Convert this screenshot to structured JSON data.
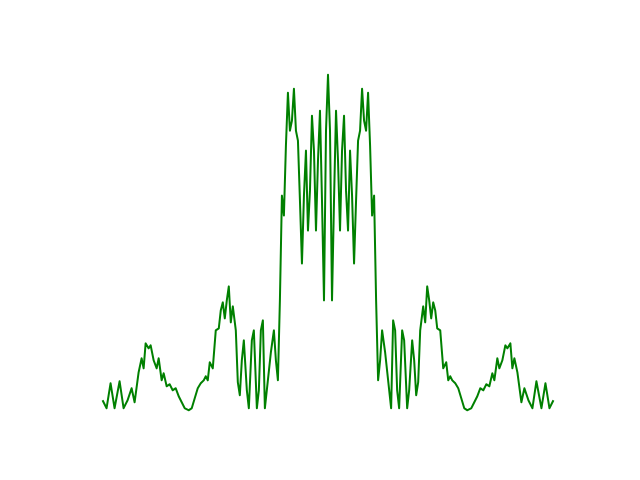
{
  "chart_data": {
    "type": "line",
    "color": "#008000",
    "x": [
      0,
      4,
      8,
      12,
      17,
      21,
      25,
      29,
      32,
      36,
      39,
      41,
      43,
      46,
      48,
      51,
      54,
      56,
      59,
      61,
      64,
      67,
      70,
      73,
      76,
      79,
      82,
      86,
      89,
      92,
      95,
      98,
      101,
      103,
      105,
      107,
      110,
      113,
      116,
      118,
      120,
      122,
      124,
      126,
      128,
      130,
      133,
      135,
      137,
      139,
      141,
      144,
      146,
      149,
      151,
      154,
      156,
      158,
      160,
      162,
      165,
      168,
      171,
      173,
      175,
      177,
      179,
      181,
      183,
      185,
      187,
      189,
      191,
      193,
      195,
      197,
      199,
      201,
      203,
      205,
      207,
      209,
      211,
      213,
      215,
      217,
      219,
      221,
      223,
      225,
      227,
      229,
      231,
      233,
      235,
      237,
      239,
      241,
      243,
      245,
      247,
      249,
      251,
      253,
      255,
      257,
      259,
      261,
      263,
      265,
      267,
      269,
      271,
      273,
      275,
      277,
      279,
      282,
      285,
      288,
      290,
      292,
      294,
      296,
      299,
      301,
      304,
      306,
      309,
      311,
      313,
      315,
      317,
      320,
      322,
      324,
      326,
      328,
      330,
      332,
      334,
      337,
      340,
      343,
      345,
      347,
      349,
      352,
      355,
      358,
      361,
      364,
      368,
      371,
      374,
      377,
      380,
      383,
      386,
      389,
      391,
      394,
      396,
      399,
      402,
      404,
      407,
      409,
      411,
      414,
      418,
      421,
      425,
      429,
      433,
      438,
      442,
      446,
      450
    ],
    "y": [
      10,
      2,
      27,
      2,
      29,
      2,
      10,
      22,
      8,
      38,
      52,
      42,
      67,
      62,
      65,
      50,
      42,
      52,
      30,
      37,
      24,
      26,
      20,
      22,
      14,
      8,
      2,
      0,
      2,
      12,
      22,
      27,
      30,
      34,
      30,
      48,
      42,
      80,
      82,
      100,
      108,
      92,
      110,
      124,
      88,
      104,
      80,
      28,
      15,
      50,
      70,
      20,
      2,
      70,
      80,
      2,
      20,
      80,
      90,
      2,
      30,
      58,
      80,
      50,
      30,
      110,
      215,
      195,
      265,
      318,
      280,
      290,
      322,
      280,
      270,
      210,
      147,
      215,
      260,
      180,
      220,
      295,
      260,
      180,
      250,
      300,
      210,
      110,
      280,
      336,
      280,
      110,
      210,
      300,
      250,
      180,
      260,
      295,
      220,
      180,
      260,
      215,
      147,
      210,
      270,
      280,
      322,
      290,
      280,
      318,
      265,
      195,
      215,
      110,
      30,
      50,
      80,
      58,
      30,
      2,
      90,
      80,
      20,
      2,
      80,
      70,
      2,
      20,
      70,
      50,
      15,
      28,
      80,
      104,
      88,
      124,
      110,
      92,
      108,
      100,
      82,
      80,
      42,
      48,
      30,
      34,
      30,
      27,
      22,
      12,
      2,
      0,
      2,
      8,
      14,
      22,
      20,
      26,
      24,
      37,
      30,
      52,
      42,
      50,
      65,
      62,
      67,
      42,
      52,
      38,
      8,
      22,
      10,
      2,
      29,
      2,
      27,
      2,
      10
    ]
  }
}
